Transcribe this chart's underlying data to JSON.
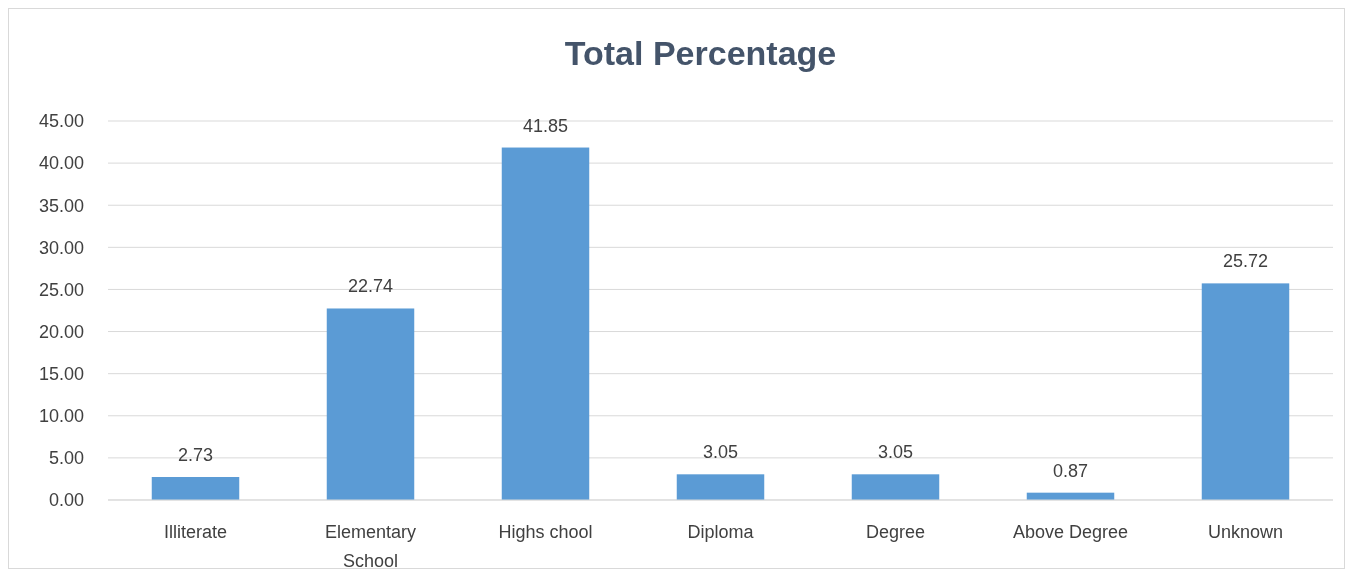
{
  "chart_data": {
    "type": "bar",
    "title": "Total  Percentage",
    "categories": [
      "Illiterate",
      "Elementary School",
      "Highs chool",
      "Diploma",
      "Degree",
      "Above Degree",
      "Unknown"
    ],
    "values": [
      2.73,
      22.74,
      41.85,
      3.05,
      3.05,
      0.87,
      25.72
    ],
    "color": "#5b9bd5",
    "ylim": [
      0,
      45
    ],
    "yticks": [
      {
        "value": 0,
        "label": "0.00"
      },
      {
        "value": 5,
        "label": "5.00"
      },
      {
        "value": 10,
        "label": "10.00"
      },
      {
        "value": 15,
        "label": "15.00"
      },
      {
        "value": 20,
        "label": "20.00"
      },
      {
        "value": 25,
        "label": "25.00"
      },
      {
        "value": 30,
        "label": "30.00"
      },
      {
        "value": 35,
        "label": "35.00"
      },
      {
        "value": 40,
        "label": "40.00"
      },
      {
        "value": 45,
        "label": "45.00"
      }
    ],
    "grid": "y",
    "data_labels": true
  }
}
